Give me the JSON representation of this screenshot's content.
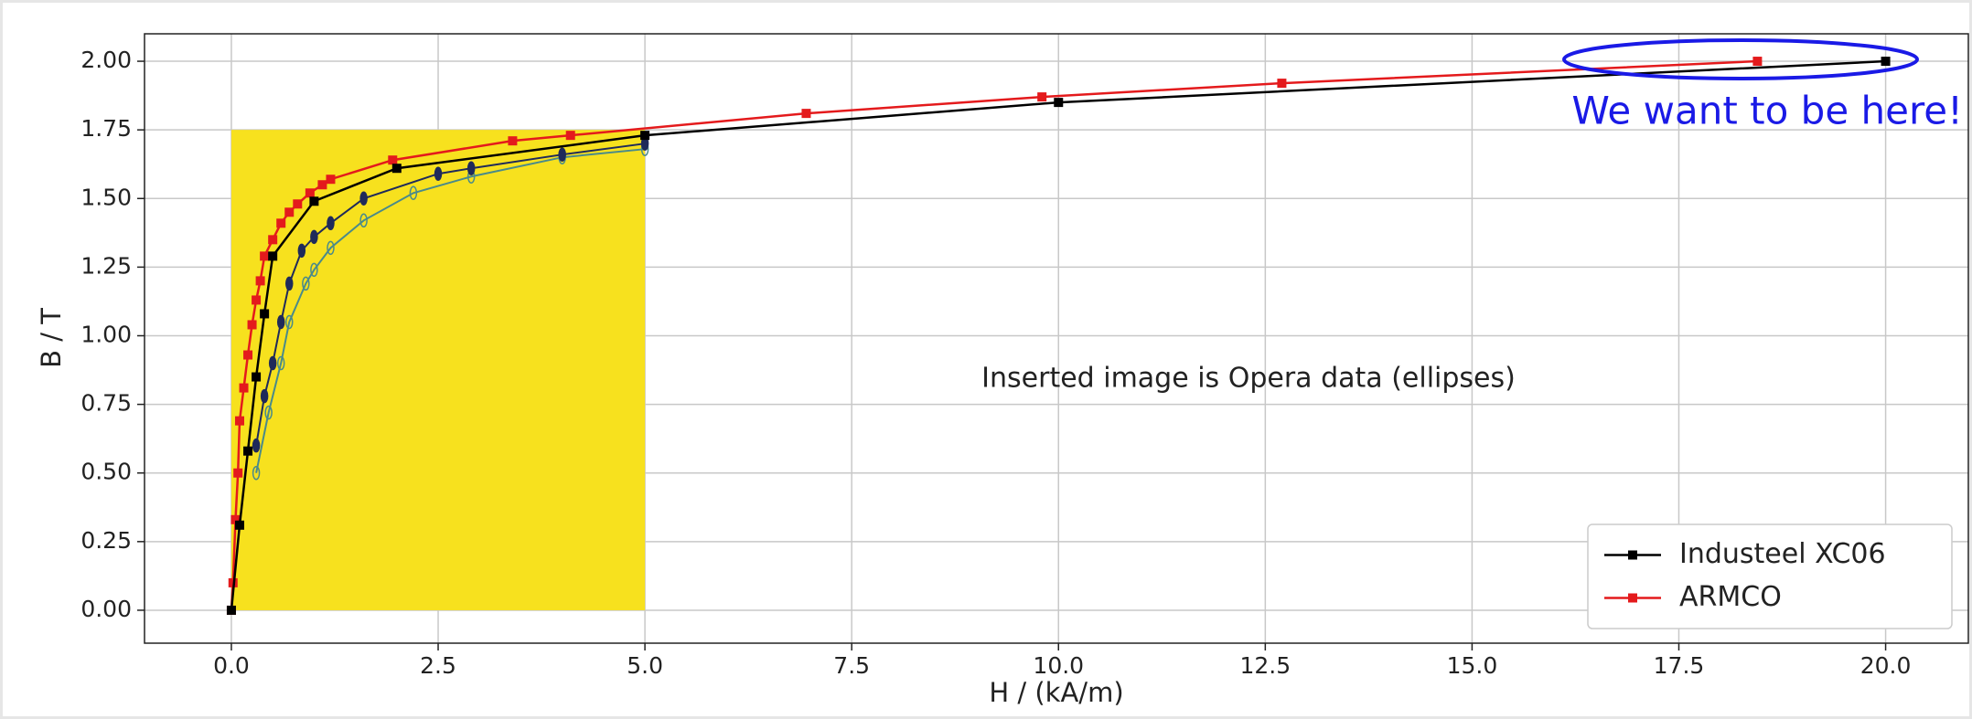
{
  "chart_data": {
    "type": "line",
    "xlabel": "H / (kA/m)",
    "ylabel": "B / T",
    "annotations": [
      "Inserted image is Opera data (ellipses)",
      "We want to be here!"
    ],
    "xlim": [
      -1.05,
      21.0
    ],
    "ylim": [
      -0.12,
      2.1
    ],
    "xticks": [
      {
        "value": 0,
        "label": "0.0"
      },
      2.5,
      {
        "value": 5,
        "label": "5.0"
      },
      7.5,
      {
        "value": 10,
        "label": "10.0"
      },
      12.5,
      {
        "value": 15,
        "label": "15.0"
      },
      17.5,
      {
        "value": 20,
        "label": "20.0"
      }
    ],
    "yticks": [
      {
        "value": 0,
        "label": "0.00"
      },
      0.25,
      {
        "value": 0.5,
        "label": "0.50"
      },
      0.75,
      {
        "value": 1,
        "label": "1.00"
      },
      1.25,
      {
        "value": 1.5,
        "label": "1.50"
      },
      1.75,
      {
        "value": 2,
        "label": "2.00"
      }
    ],
    "grid": true,
    "legend": "lower right",
    "inset_region": {
      "x": [
        0,
        5
      ],
      "y": [
        0,
        1.75
      ],
      "color": "#f7e11e"
    },
    "series": [
      {
        "name": "Industeel XC06",
        "color": "#000000",
        "marker": "square",
        "x": [
          0,
          0.1,
          0.2,
          0.3,
          0.4,
          0.5,
          1.0,
          2.0,
          5.0,
          10.0,
          20.0
        ],
        "values": [
          0,
          0.31,
          0.58,
          0.85,
          1.08,
          1.29,
          1.49,
          1.61,
          1.73,
          1.85,
          2.0
        ]
      },
      {
        "name": "ARMCO",
        "color": "#e41a1c",
        "marker": "square",
        "x": [
          0,
          0.02,
          0.05,
          0.08,
          0.1,
          0.15,
          0.2,
          0.25,
          0.3,
          0.35,
          0.4,
          0.5,
          0.6,
          0.7,
          0.8,
          0.95,
          1.1,
          1.2,
          1.95,
          3.4,
          4.1,
          6.95,
          9.8,
          12.7,
          18.45
        ],
        "values": [
          0,
          0.1,
          0.33,
          0.5,
          0.69,
          0.81,
          0.93,
          1.04,
          1.13,
          1.2,
          1.29,
          1.35,
          1.41,
          1.45,
          1.48,
          1.52,
          1.55,
          1.57,
          1.64,
          1.71,
          1.73,
          1.81,
          1.87,
          1.92,
          2.0
        ]
      },
      {
        "color": "#1f2a5a",
        "marker": "ellipse-filled",
        "x": [
          0.3,
          0.4,
          0.5,
          0.6,
          0.7,
          0.85,
          1.0,
          1.2,
          1.6,
          2.5,
          2.9,
          4.0,
          5.0
        ],
        "values": [
          0.6,
          0.78,
          0.9,
          1.05,
          1.19,
          1.31,
          1.36,
          1.41,
          1.5,
          1.59,
          1.61,
          1.66,
          1.7
        ]
      },
      {
        "color": "#4a8a8a",
        "marker": "ellipse-hollow",
        "x": [
          0.3,
          0.45,
          0.6,
          0.7,
          0.9,
          1.0,
          1.2,
          1.6,
          2.2,
          2.9,
          4.0,
          5.0
        ],
        "values": [
          0.5,
          0.72,
          0.9,
          1.05,
          1.19,
          1.24,
          1.32,
          1.42,
          1.52,
          1.58,
          1.65,
          1.68
        ]
      }
    ]
  }
}
